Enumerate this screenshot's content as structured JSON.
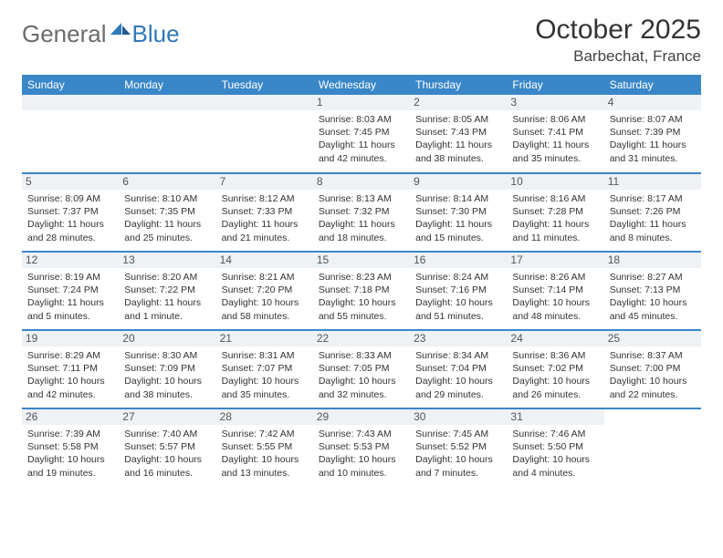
{
  "brand": {
    "first": "General",
    "second": "Blue"
  },
  "title": "October 2025",
  "location": "Barbechat, France",
  "colors": {
    "header_bg": "#3a87c8",
    "day_num_bg": "#eef2f5",
    "border": "#3a87c8",
    "text": "#333333",
    "brand_gray": "#6b6b6b",
    "brand_blue": "#2f78b9"
  },
  "day_names": [
    "Sunday",
    "Monday",
    "Tuesday",
    "Wednesday",
    "Thursday",
    "Friday",
    "Saturday"
  ],
  "weeks": [
    [
      null,
      null,
      null,
      {
        "n": "1",
        "sunrise": "8:03 AM",
        "sunset": "7:45 PM",
        "daylight": "11 hours and 42 minutes."
      },
      {
        "n": "2",
        "sunrise": "8:05 AM",
        "sunset": "7:43 PM",
        "daylight": "11 hours and 38 minutes."
      },
      {
        "n": "3",
        "sunrise": "8:06 AM",
        "sunset": "7:41 PM",
        "daylight": "11 hours and 35 minutes."
      },
      {
        "n": "4",
        "sunrise": "8:07 AM",
        "sunset": "7:39 PM",
        "daylight": "11 hours and 31 minutes."
      }
    ],
    [
      {
        "n": "5",
        "sunrise": "8:09 AM",
        "sunset": "7:37 PM",
        "daylight": "11 hours and 28 minutes."
      },
      {
        "n": "6",
        "sunrise": "8:10 AM",
        "sunset": "7:35 PM",
        "daylight": "11 hours and 25 minutes."
      },
      {
        "n": "7",
        "sunrise": "8:12 AM",
        "sunset": "7:33 PM",
        "daylight": "11 hours and 21 minutes."
      },
      {
        "n": "8",
        "sunrise": "8:13 AM",
        "sunset": "7:32 PM",
        "daylight": "11 hours and 18 minutes."
      },
      {
        "n": "9",
        "sunrise": "8:14 AM",
        "sunset": "7:30 PM",
        "daylight": "11 hours and 15 minutes."
      },
      {
        "n": "10",
        "sunrise": "8:16 AM",
        "sunset": "7:28 PM",
        "daylight": "11 hours and 11 minutes."
      },
      {
        "n": "11",
        "sunrise": "8:17 AM",
        "sunset": "7:26 PM",
        "daylight": "11 hours and 8 minutes."
      }
    ],
    [
      {
        "n": "12",
        "sunrise": "8:19 AM",
        "sunset": "7:24 PM",
        "daylight": "11 hours and 5 minutes."
      },
      {
        "n": "13",
        "sunrise": "8:20 AM",
        "sunset": "7:22 PM",
        "daylight": "11 hours and 1 minute."
      },
      {
        "n": "14",
        "sunrise": "8:21 AM",
        "sunset": "7:20 PM",
        "daylight": "10 hours and 58 minutes."
      },
      {
        "n": "15",
        "sunrise": "8:23 AM",
        "sunset": "7:18 PM",
        "daylight": "10 hours and 55 minutes."
      },
      {
        "n": "16",
        "sunrise": "8:24 AM",
        "sunset": "7:16 PM",
        "daylight": "10 hours and 51 minutes."
      },
      {
        "n": "17",
        "sunrise": "8:26 AM",
        "sunset": "7:14 PM",
        "daylight": "10 hours and 48 minutes."
      },
      {
        "n": "18",
        "sunrise": "8:27 AM",
        "sunset": "7:13 PM",
        "daylight": "10 hours and 45 minutes."
      }
    ],
    [
      {
        "n": "19",
        "sunrise": "8:29 AM",
        "sunset": "7:11 PM",
        "daylight": "10 hours and 42 minutes."
      },
      {
        "n": "20",
        "sunrise": "8:30 AM",
        "sunset": "7:09 PM",
        "daylight": "10 hours and 38 minutes."
      },
      {
        "n": "21",
        "sunrise": "8:31 AM",
        "sunset": "7:07 PM",
        "daylight": "10 hours and 35 minutes."
      },
      {
        "n": "22",
        "sunrise": "8:33 AM",
        "sunset": "7:05 PM",
        "daylight": "10 hours and 32 minutes."
      },
      {
        "n": "23",
        "sunrise": "8:34 AM",
        "sunset": "7:04 PM",
        "daylight": "10 hours and 29 minutes."
      },
      {
        "n": "24",
        "sunrise": "8:36 AM",
        "sunset": "7:02 PM",
        "daylight": "10 hours and 26 minutes."
      },
      {
        "n": "25",
        "sunrise": "8:37 AM",
        "sunset": "7:00 PM",
        "daylight": "10 hours and 22 minutes."
      }
    ],
    [
      {
        "n": "26",
        "sunrise": "7:39 AM",
        "sunset": "5:58 PM",
        "daylight": "10 hours and 19 minutes."
      },
      {
        "n": "27",
        "sunrise": "7:40 AM",
        "sunset": "5:57 PM",
        "daylight": "10 hours and 16 minutes."
      },
      {
        "n": "28",
        "sunrise": "7:42 AM",
        "sunset": "5:55 PM",
        "daylight": "10 hours and 13 minutes."
      },
      {
        "n": "29",
        "sunrise": "7:43 AM",
        "sunset": "5:53 PM",
        "daylight": "10 hours and 10 minutes."
      },
      {
        "n": "30",
        "sunrise": "7:45 AM",
        "sunset": "5:52 PM",
        "daylight": "10 hours and 7 minutes."
      },
      {
        "n": "31",
        "sunrise": "7:46 AM",
        "sunset": "5:50 PM",
        "daylight": "10 hours and 4 minutes."
      },
      null
    ]
  ]
}
